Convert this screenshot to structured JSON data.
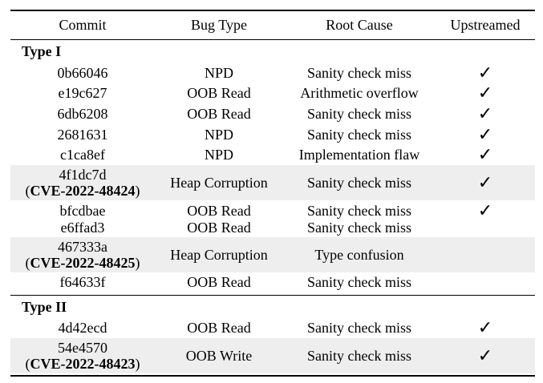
{
  "headers": {
    "commit": "Commit",
    "bug_type": "Bug Type",
    "root_cause": "Root Cause",
    "upstreamed": "Upstreamed"
  },
  "check_symbol": "✓",
  "groups": [
    {
      "label": "Type I",
      "rows": [
        {
          "commit": "0b66046",
          "cve": "",
          "bug_type": "NPD",
          "root_cause": "Sanity check miss",
          "upstreamed": true
        },
        {
          "commit": "e19c627",
          "cve": "",
          "bug_type": "OOB Read",
          "root_cause": "Arithmetic overflow",
          "upstreamed": true
        },
        {
          "commit": "6db6208",
          "cve": "",
          "bug_type": "OOB Read",
          "root_cause": "Sanity check miss",
          "upstreamed": true
        },
        {
          "commit": "2681631",
          "cve": "",
          "bug_type": "NPD",
          "root_cause": "Sanity check miss",
          "upstreamed": true
        },
        {
          "commit": "c1ca8ef",
          "cve": "",
          "bug_type": "NPD",
          "root_cause": "Implementation flaw",
          "upstreamed": true
        },
        {
          "commit": "4f1dc7d",
          "cve": "CVE-2022-48424",
          "bug_type": "Heap Corruption",
          "root_cause": "Sanity check miss",
          "upstreamed": true
        },
        {
          "commit": "bfcdbae",
          "cve": "",
          "bug_type": "OOB Read",
          "root_cause": "Sanity check miss",
          "upstreamed": true
        },
        {
          "commit": "e6ffad3",
          "cve": "",
          "bug_type": "OOB Read",
          "root_cause": "Sanity check miss",
          "upstreamed": false
        },
        {
          "commit": "467333a",
          "cve": "CVE-2022-48425",
          "bug_type": "Heap Corruption",
          "root_cause": "Type confusion",
          "upstreamed": false
        },
        {
          "commit": "f64633f",
          "cve": "",
          "bug_type": "OOB Read",
          "root_cause": "Sanity check miss",
          "upstreamed": false
        }
      ]
    },
    {
      "label": "Type II",
      "rows": [
        {
          "commit": "4d42ecd",
          "cve": "",
          "bug_type": "OOB Read",
          "root_cause": "Sanity check miss",
          "upstreamed": true
        },
        {
          "commit": "54e4570",
          "cve": "CVE-2022-48423",
          "bug_type": "OOB Write",
          "root_cause": "Sanity check miss",
          "upstreamed": true
        }
      ]
    }
  ]
}
